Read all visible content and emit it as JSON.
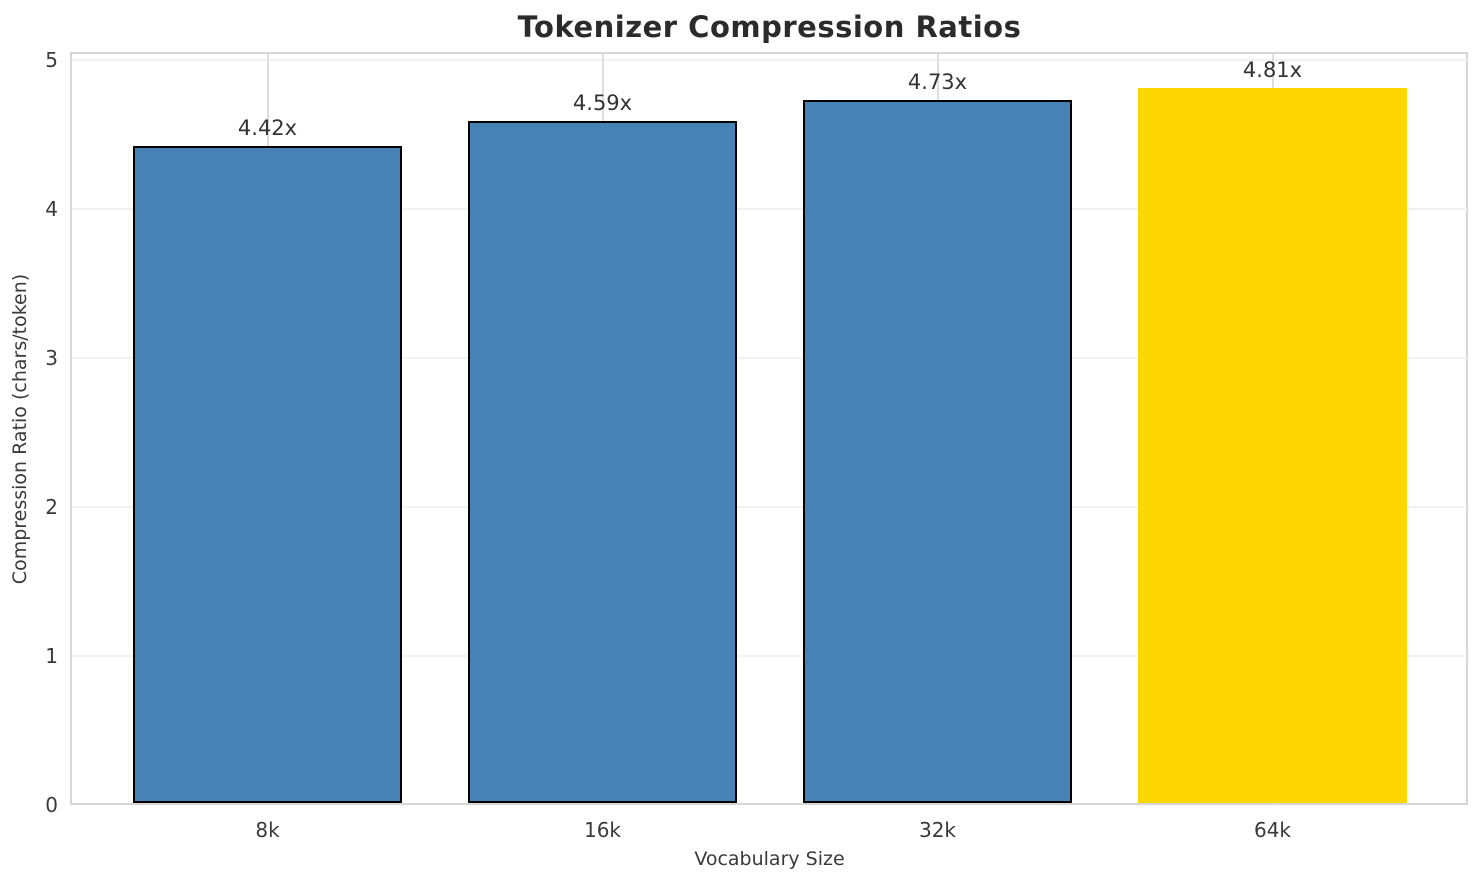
{
  "chart_data": {
    "type": "bar",
    "title": "Tokenizer Compression Ratios",
    "xlabel": "Vocabulary Size",
    "ylabel": "Compression Ratio (chars/token)",
    "categories": [
      "8k",
      "16k",
      "32k",
      "64k"
    ],
    "values": [
      4.42,
      4.59,
      4.73,
      4.81
    ],
    "bar_labels": [
      "4.42x",
      "4.59x",
      "4.73x",
      "4.81x"
    ],
    "yticks": [
      0,
      1,
      2,
      3,
      4,
      5
    ],
    "ylim": [
      0,
      5.05
    ],
    "grid": true,
    "legend": "none",
    "colors": {
      "bar_default": "#4682B4",
      "bar_highlight": "#FFD700",
      "bar_edge": "#000000",
      "highlight_edge": "none",
      "spine": "#d6d6d6",
      "vgrid": "#dedede",
      "hgrid": "#f2f2f2",
      "title_text": "#2b2b2b",
      "tick_text": "#3a3a3a"
    },
    "bar_colors": [
      "#4682B4",
      "#4682B4",
      "#4682B4",
      "#FFD700"
    ],
    "bar_edges": [
      "#000000",
      "#000000",
      "#000000",
      "none"
    ],
    "highlight_category": "64k"
  }
}
